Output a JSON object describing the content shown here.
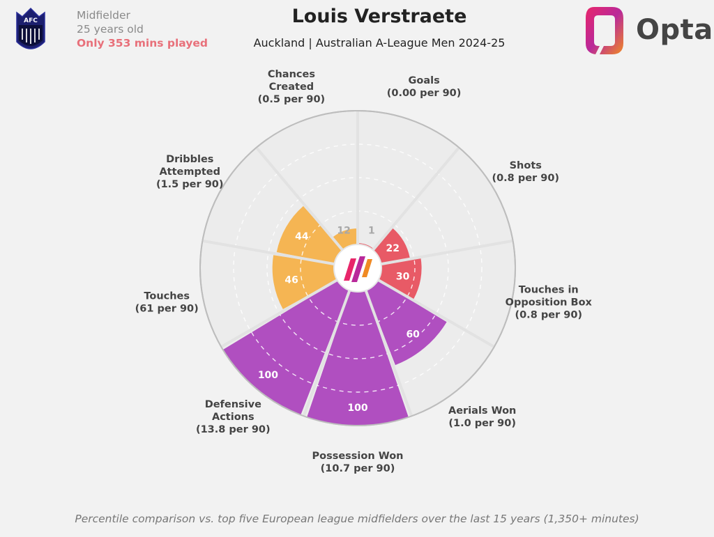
{
  "header": {
    "position": "Midfielder",
    "age": "25 years old",
    "minutes_note": "Only 353 mins played",
    "player_name": "Louis Verstraete",
    "team_league": "Auckland | Australian A-League Men 2024-25",
    "brand": "Opta",
    "crest_letters": "AFC"
  },
  "footnote": "Percentile comparison vs. top five European league midfielders over the last 15 years (1,350+ minutes)",
  "colors": {
    "attacking": "#e85a66",
    "possession": "#b04fc0",
    "creation": "#f5b553",
    "empty": "#cccccc"
  },
  "chart_data": {
    "type": "polar-bar",
    "max": 100,
    "categories": [
      {
        "name": "Goals",
        "per90": "(0.00 per 90)",
        "percentile": 1,
        "group": "attacking"
      },
      {
        "name": "Shots",
        "per90": "(0.8 per 90)",
        "percentile": 22,
        "group": "attacking"
      },
      {
        "name": "Touches in Opposition Box",
        "per90": "(0.8 per 90)",
        "percentile": 30,
        "group": "attacking"
      },
      {
        "name": "Aerials Won",
        "per90": "(1.0 per 90)",
        "percentile": 60,
        "group": "possession"
      },
      {
        "name": "Possession Won",
        "per90": "(10.7 per 90)",
        "percentile": 100,
        "group": "possession"
      },
      {
        "name": "Defensive Actions",
        "per90": "(13.8 per 90)",
        "percentile": 100,
        "group": "possession"
      },
      {
        "name": "Touches",
        "per90": "(61 per 90)",
        "percentile": 46,
        "group": "creation"
      },
      {
        "name": "Dribbles Attempted",
        "per90": "(1.5 per 90)",
        "percentile": 44,
        "group": "creation"
      },
      {
        "name": "Chances Created",
        "per90": "(0.5 per 90)",
        "percentile": 12,
        "group": "creation"
      }
    ]
  }
}
